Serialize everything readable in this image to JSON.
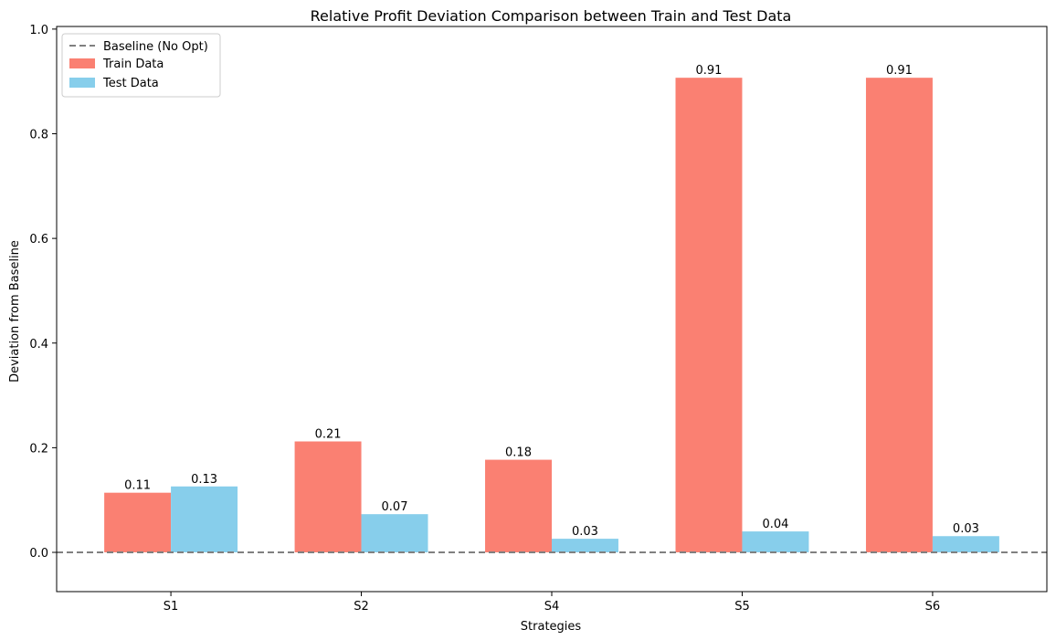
{
  "chart_data": {
    "type": "bar",
    "title": "Relative Profit Deviation Comparison between Train and Test Data",
    "xlabel": "Strategies",
    "ylabel": "Deviation from Baseline",
    "categories": [
      "S1",
      "S2",
      "S4",
      "S5",
      "S6"
    ],
    "series": [
      {
        "name": "Train Data",
        "values": [
          0.114,
          0.212,
          0.177,
          0.907,
          0.907
        ],
        "labels": [
          "0.11",
          "0.21",
          "0.18",
          "0.91",
          "0.91"
        ],
        "color": "#fa8072"
      },
      {
        "name": "Test Data",
        "values": [
          0.126,
          0.073,
          0.026,
          0.04,
          0.031
        ],
        "labels": [
          "0.13",
          "0.07",
          "0.03",
          "0.04",
          "0.03"
        ],
        "color": "#87ceeb"
      }
    ],
    "baseline": {
      "name": "Baseline (No Opt)",
      "value": 0.0,
      "color": "#808080",
      "style": "dashed"
    },
    "ylim": [
      -0.075,
      1.005
    ],
    "yticks": [
      0.0,
      0.2,
      0.4,
      0.6,
      0.8,
      1.0
    ],
    "ytick_labels": [
      "0.0",
      "0.2",
      "0.4",
      "0.6",
      "0.8",
      "1.0"
    ],
    "legend_position": "top-left",
    "grid": false
  }
}
